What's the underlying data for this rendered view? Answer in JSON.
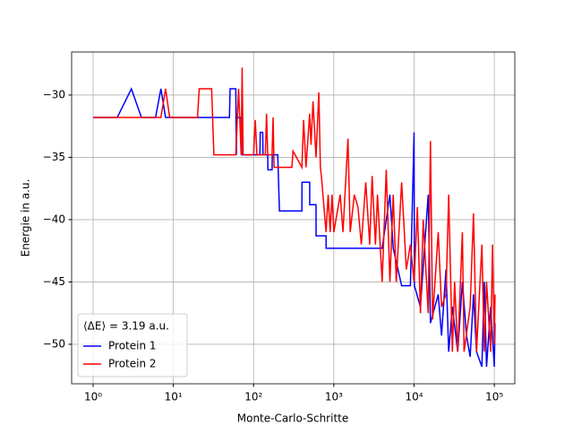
{
  "chart_data": {
    "type": "line",
    "x_label": "Monte-Carlo-Schritte",
    "y_label": "Energie in a.u.",
    "log_x": true,
    "grid": true,
    "legend_position": "lower left",
    "legend_title": "⟨ΔE⟩ = 3.19 a.u.",
    "xlim": [
      0.54,
      180000
    ],
    "ylim": [
      -53.17,
      -26.55
    ],
    "xticks": [
      {
        "value": 1,
        "label": "10⁰"
      },
      {
        "value": 10,
        "label": "10¹"
      },
      {
        "value": 100,
        "label": "10²"
      },
      {
        "value": 1000,
        "label": "10³"
      },
      {
        "value": 10000,
        "label": "10⁴"
      },
      {
        "value": 100000,
        "label": "10⁵"
      }
    ],
    "yticks": [
      {
        "value": -50,
        "label": "−50"
      },
      {
        "value": -45,
        "label": "−45"
      },
      {
        "value": -40,
        "label": "−40"
      },
      {
        "value": -35,
        "label": "−35"
      },
      {
        "value": -30,
        "label": "−30"
      }
    ],
    "series": [
      {
        "name": "Protein 1",
        "color": "#0000ff",
        "x": [
          1,
          2,
          3,
          4,
          6,
          7,
          8,
          50,
          51,
          60,
          61,
          62,
          70,
          71,
          120,
          121,
          130,
          131,
          150,
          151,
          170,
          171,
          200,
          210,
          400,
          401,
          500,
          501,
          600,
          601,
          800,
          801,
          3000,
          4000,
          5000,
          5500,
          7000,
          9000,
          10000,
          10100,
          12000,
          15000,
          16000,
          20000,
          22000,
          25000,
          27000,
          30000,
          35000,
          40000,
          45000,
          50000,
          55000,
          60000,
          70000,
          75000,
          80000,
          90000,
          100000,
          102000
        ],
        "values": [
          -31.8,
          -31.8,
          -29.5,
          -31.8,
          -31.8,
          -29.5,
          -31.8,
          -31.8,
          -29.5,
          -29.5,
          -34.8,
          -31.8,
          -31.8,
          -34.8,
          -34.8,
          -33,
          -33,
          -34.8,
          -34.8,
          -36,
          -36,
          -34.8,
          -34.8,
          -39.3,
          -39.3,
          -37,
          -37,
          -38.8,
          -38.8,
          -41.3,
          -41.3,
          -42.3,
          -42.3,
          -42.3,
          -38,
          -42.3,
          -45.3,
          -45.3,
          -33,
          -45.3,
          -47,
          -38,
          -48.3,
          -46,
          -49.3,
          -44,
          -50.6,
          -47,
          -50.6,
          -45,
          -49.3,
          -51,
          -46,
          -50.6,
          -51.8,
          -45,
          -51.8,
          -47,
          -51.8,
          -48.3
        ]
      },
      {
        "name": "Protein 2",
        "color": "#ff0000",
        "x": [
          1,
          7,
          8,
          9,
          20,
          21,
          30,
          32,
          55,
          60,
          65,
          70,
          72,
          74,
          100,
          105,
          110,
          140,
          145,
          150,
          170,
          175,
          180,
          300,
          310,
          400,
          420,
          450,
          500,
          520,
          550,
          600,
          650,
          680,
          700,
          800,
          850,
          900,
          950,
          1000,
          1200,
          1300,
          1500,
          1600,
          1800,
          2000,
          2200,
          2500,
          2800,
          3000,
          3300,
          3500,
          4000,
          4500,
          5000,
          5500,
          6000,
          7000,
          8000,
          9000,
          10000,
          11000,
          12000,
          13000,
          15000,
          16000,
          17000,
          20000,
          22000,
          25000,
          27000,
          30000,
          32000,
          35000,
          40000,
          42000,
          50000,
          55000,
          60000,
          70000,
          75000,
          80000,
          90000,
          95000,
          100000,
          102000
        ],
        "values": [
          -31.8,
          -31.8,
          -29.5,
          -31.8,
          -31.8,
          -29.5,
          -29.5,
          -34.8,
          -34.8,
          -34.8,
          -29.5,
          -34.8,
          -27.8,
          -34.8,
          -34.8,
          -32,
          -34.8,
          -34.8,
          -31.5,
          -34.8,
          -34.8,
          -31.8,
          -35.8,
          -35.8,
          -34.5,
          -35.8,
          -32,
          -35.8,
          -31.5,
          -34,
          -30.5,
          -35,
          -29.8,
          -35.8,
          -36.5,
          -41,
          -38,
          -41,
          -38,
          -41,
          -38,
          -41,
          -33.5,
          -41,
          -38,
          -39,
          -42,
          -37,
          -42,
          -36.5,
          -42,
          -38,
          -45,
          -36,
          -45,
          -38,
          -45,
          -37,
          -44,
          -42,
          -45,
          -39,
          -47.5,
          -40,
          -47.5,
          -33.7,
          -48,
          -41,
          -47,
          -46,
          -38,
          -50.6,
          -45,
          -50.6,
          -41,
          -50.6,
          -47,
          -39.5,
          -50.6,
          -42,
          -50.6,
          -45,
          -50.6,
          -42,
          -50,
          -46
        ]
      }
    ]
  }
}
